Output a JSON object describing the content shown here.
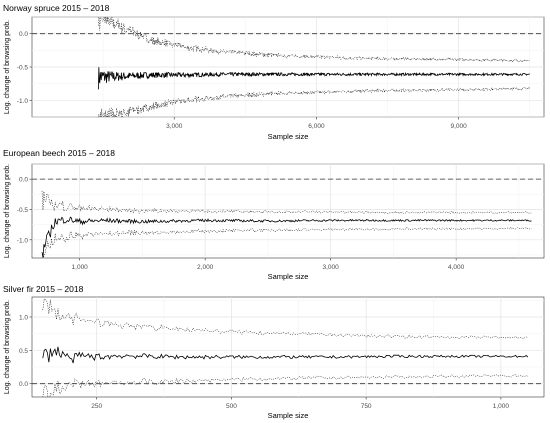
{
  "chart_data": [
    {
      "type": "line",
      "title": "Norway spruce 2015 – 2018",
      "xlabel": "Sample size",
      "ylabel": "Log. change of browsing prob.",
      "xlim": [
        0,
        10800
      ],
      "ylim": [
        -1.25,
        0.25
      ],
      "x_ticks": [
        3000,
        6000,
        9000
      ],
      "x_tick_labels": [
        "3,000",
        "6,000",
        "9,000"
      ],
      "y_ticks": [
        -1.0,
        -0.5,
        0.0
      ],
      "y_tick_labels": [
        "-1.0",
        "-0.5",
        "0.0"
      ],
      "reference_line": 0.0,
      "grid": true,
      "series": [
        {
          "x": [
            1400,
            1900,
            2500,
            3200,
            4000,
            5000,
            6000,
            7000,
            8000,
            9000,
            10000,
            10500
          ],
          "values": [
            -0.65,
            -0.64,
            -0.62,
            -0.62,
            -0.61,
            -0.61,
            -0.61,
            -0.61,
            -0.61,
            -0.61,
            -0.61,
            -0.61
          ]
        },
        {
          "x": [
            1400,
            1900,
            2500,
            3200,
            4000,
            5000,
            6000,
            7000,
            8000,
            9000,
            10000,
            10500
          ],
          "values": [
            0.25,
            0.1,
            -0.1,
            -0.2,
            -0.27,
            -0.32,
            -0.35,
            -0.37,
            -0.38,
            -0.39,
            -0.4,
            -0.41
          ]
        },
        {
          "x": [
            1400,
            1900,
            2500,
            3200,
            4000,
            5000,
            6000,
            7000,
            8000,
            9000,
            10000,
            10500
          ],
          "values": [
            -1.25,
            -1.2,
            -1.1,
            -1.0,
            -0.95,
            -0.9,
            -0.88,
            -0.86,
            -0.85,
            -0.84,
            -0.83,
            -0.82
          ]
        }
      ]
    },
    {
      "type": "line",
      "title": "European beech 2015 – 2018",
      "xlabel": "Sample size",
      "ylabel": "Log. change of browsing prob.",
      "xlim": [
        620,
        4700
      ],
      "ylim": [
        -1.3,
        0.25
      ],
      "x_ticks": [
        1000,
        2000,
        3000,
        4000
      ],
      "x_tick_labels": [
        "1,000",
        "2,000",
        "3,000",
        "4,000"
      ],
      "y_ticks": [
        -1.0,
        -0.5,
        0.0
      ],
      "y_tick_labels": [
        "-1.0",
        "-0.5",
        "0.0"
      ],
      "reference_line": 0.0,
      "grid": true,
      "series": [
        {
          "x": [
            700,
            800,
            900,
            1000,
            1200,
            1500,
            2000,
            2500,
            3000,
            3500,
            4000,
            4600
          ],
          "values": [
            -1.22,
            -0.7,
            -0.66,
            -0.7,
            -0.68,
            -0.7,
            -0.68,
            -0.69,
            -0.68,
            -0.68,
            -0.68,
            -0.68
          ]
        },
        {
          "x": [
            700,
            800,
            900,
            1000,
            1200,
            1500,
            2000,
            2500,
            3000,
            3500,
            4000,
            4600
          ],
          "values": [
            -0.3,
            -0.4,
            -0.45,
            -0.48,
            -0.5,
            -0.52,
            -0.53,
            -0.54,
            -0.54,
            -0.55,
            -0.55,
            -0.55
          ]
        },
        {
          "x": [
            700,
            800,
            900,
            1000,
            1200,
            1500,
            2000,
            2500,
            3000,
            3500,
            4000,
            4600
          ],
          "values": [
            -1.3,
            -1.0,
            -0.95,
            -0.92,
            -0.9,
            -0.88,
            -0.86,
            -0.84,
            -0.83,
            -0.82,
            -0.82,
            -0.81
          ]
        }
      ]
    },
    {
      "type": "line",
      "title": "Silver fir 2015 – 2018",
      "xlabel": "Sample size",
      "ylabel": "Log. change of browsing prob.",
      "xlim": [
        130,
        1080
      ],
      "ylim": [
        -0.2,
        1.3
      ],
      "x_ticks": [
        250,
        500,
        750,
        1000
      ],
      "x_tick_labels": [
        "250",
        "500",
        "750",
        "1,000"
      ],
      "y_ticks": [
        0.0,
        0.5,
        1.0
      ],
      "y_tick_labels": [
        "0.0",
        "0.5",
        "1.0"
      ],
      "reference_line": 0.0,
      "grid": true,
      "series": [
        {
          "x": [
            150,
            170,
            190,
            200,
            220,
            250,
            300,
            400,
            500,
            600,
            700,
            800,
            900,
            1050
          ],
          "values": [
            0.38,
            0.5,
            0.45,
            0.35,
            0.42,
            0.4,
            0.42,
            0.4,
            0.4,
            0.4,
            0.4,
            0.41,
            0.41,
            0.41
          ]
        },
        {
          "x": [
            150,
            170,
            190,
            200,
            220,
            250,
            300,
            400,
            500,
            600,
            700,
            800,
            900,
            1050
          ],
          "values": [
            1.2,
            1.1,
            1.0,
            0.97,
            0.95,
            0.92,
            0.88,
            0.82,
            0.78,
            0.75,
            0.73,
            0.71,
            0.7,
            0.69
          ]
        },
        {
          "x": [
            150,
            170,
            190,
            200,
            220,
            250,
            300,
            400,
            500,
            600,
            700,
            800,
            900,
            1050
          ],
          "values": [
            -0.2,
            -0.1,
            -0.05,
            -0.03,
            -0.02,
            0.0,
            0.02,
            0.04,
            0.06,
            0.08,
            0.09,
            0.1,
            0.11,
            0.12
          ]
        }
      ]
    }
  ]
}
